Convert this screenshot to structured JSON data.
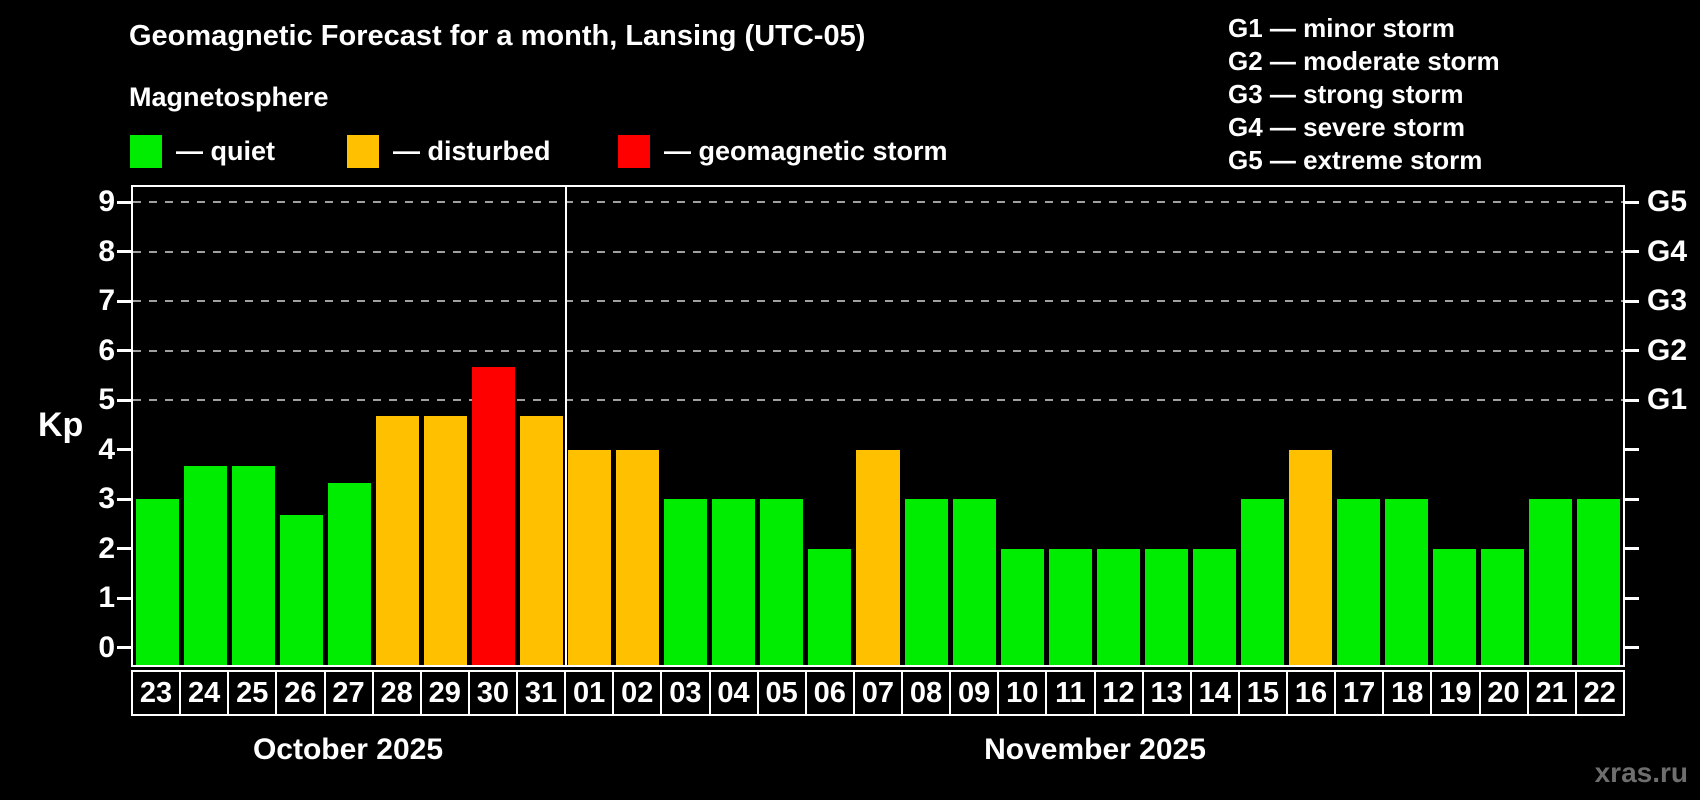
{
  "header": {
    "title": "Geomagnetic Forecast for a month, Lansing (UTC-05)",
    "subtitle": "Magnetosphere",
    "legend": [
      {
        "status": "quiet",
        "label": "— quiet"
      },
      {
        "status": "disturbed",
        "label": "— disturbed"
      },
      {
        "status": "storm",
        "label": "— geomagnetic storm"
      }
    ],
    "g_scale_legend": [
      "G1 — minor storm",
      "G2 — moderate storm",
      "G3 — strong storm",
      "G4 — severe storm",
      "G5 — extreme storm"
    ]
  },
  "colors": {
    "quiet": "#00ec00",
    "disturbed": "#ffc000",
    "storm": "#ff0000",
    "grid": "#a0a0a0",
    "axis": "#ffffff",
    "watermark": "#6e6e6e"
  },
  "chart_data": {
    "type": "bar",
    "ylabel": "Kp",
    "y_ticks": [
      0,
      1,
      2,
      3,
      4,
      5,
      6,
      7,
      8,
      9
    ],
    "ylim": [
      0,
      9.4
    ],
    "grid": "dashed horizontal at Kp 5-9",
    "gridlines_kp": [
      5,
      6,
      7,
      8,
      9
    ],
    "right_axis_labels": [
      {
        "kp": 5,
        "label": "G1"
      },
      {
        "kp": 6,
        "label": "G2"
      },
      {
        "kp": 7,
        "label": "G3"
      },
      {
        "kp": 8,
        "label": "G4"
      },
      {
        "kp": 9,
        "label": "G5"
      }
    ],
    "months": [
      {
        "label": "October 2025",
        "days": 9
      },
      {
        "label": "November 2025",
        "days": 22
      }
    ],
    "bars": [
      {
        "month": "October 2025",
        "day": "23",
        "kp": 3.0,
        "status": "quiet"
      },
      {
        "month": "October 2025",
        "day": "24",
        "kp": 3.67,
        "status": "quiet"
      },
      {
        "month": "October 2025",
        "day": "25",
        "kp": 3.67,
        "status": "quiet"
      },
      {
        "month": "October 2025",
        "day": "26",
        "kp": 2.67,
        "status": "quiet"
      },
      {
        "month": "October 2025",
        "day": "27",
        "kp": 3.33,
        "status": "quiet"
      },
      {
        "month": "October 2025",
        "day": "28",
        "kp": 4.67,
        "status": "disturbed"
      },
      {
        "month": "October 2025",
        "day": "29",
        "kp": 4.67,
        "status": "disturbed"
      },
      {
        "month": "October 2025",
        "day": "30",
        "kp": 5.67,
        "status": "storm"
      },
      {
        "month": "October 2025",
        "day": "31",
        "kp": 4.67,
        "status": "disturbed"
      },
      {
        "month": "November 2025",
        "day": "01",
        "kp": 4.0,
        "status": "disturbed"
      },
      {
        "month": "November 2025",
        "day": "02",
        "kp": 4.0,
        "status": "disturbed"
      },
      {
        "month": "November 2025",
        "day": "03",
        "kp": 3.0,
        "status": "quiet"
      },
      {
        "month": "November 2025",
        "day": "04",
        "kp": 3.0,
        "status": "quiet"
      },
      {
        "month": "November 2025",
        "day": "05",
        "kp": 3.0,
        "status": "quiet"
      },
      {
        "month": "November 2025",
        "day": "06",
        "kp": 2.0,
        "status": "quiet"
      },
      {
        "month": "November 2025",
        "day": "07",
        "kp": 4.0,
        "status": "disturbed"
      },
      {
        "month": "November 2025",
        "day": "08",
        "kp": 3.0,
        "status": "quiet"
      },
      {
        "month": "November 2025",
        "day": "09",
        "kp": 3.0,
        "status": "quiet"
      },
      {
        "month": "November 2025",
        "day": "10",
        "kp": 2.0,
        "status": "quiet"
      },
      {
        "month": "November 2025",
        "day": "11",
        "kp": 2.0,
        "status": "quiet"
      },
      {
        "month": "November 2025",
        "day": "12",
        "kp": 2.0,
        "status": "quiet"
      },
      {
        "month": "November 2025",
        "day": "13",
        "kp": 2.0,
        "status": "quiet"
      },
      {
        "month": "November 2025",
        "day": "14",
        "kp": 2.0,
        "status": "quiet"
      },
      {
        "month": "November 2025",
        "day": "15",
        "kp": 3.0,
        "status": "quiet"
      },
      {
        "month": "November 2025",
        "day": "16",
        "kp": 4.0,
        "status": "disturbed"
      },
      {
        "month": "November 2025",
        "day": "17",
        "kp": 3.0,
        "status": "quiet"
      },
      {
        "month": "November 2025",
        "day": "18",
        "kp": 3.0,
        "status": "quiet"
      },
      {
        "month": "November 2025",
        "day": "19",
        "kp": 2.0,
        "status": "quiet"
      },
      {
        "month": "November 2025",
        "day": "20",
        "kp": 2.0,
        "status": "quiet"
      },
      {
        "month": "November 2025",
        "day": "21",
        "kp": 3.0,
        "status": "quiet"
      },
      {
        "month": "November 2025",
        "day": "22",
        "kp": 3.0,
        "status": "quiet"
      }
    ]
  },
  "watermark": "xras.ru"
}
